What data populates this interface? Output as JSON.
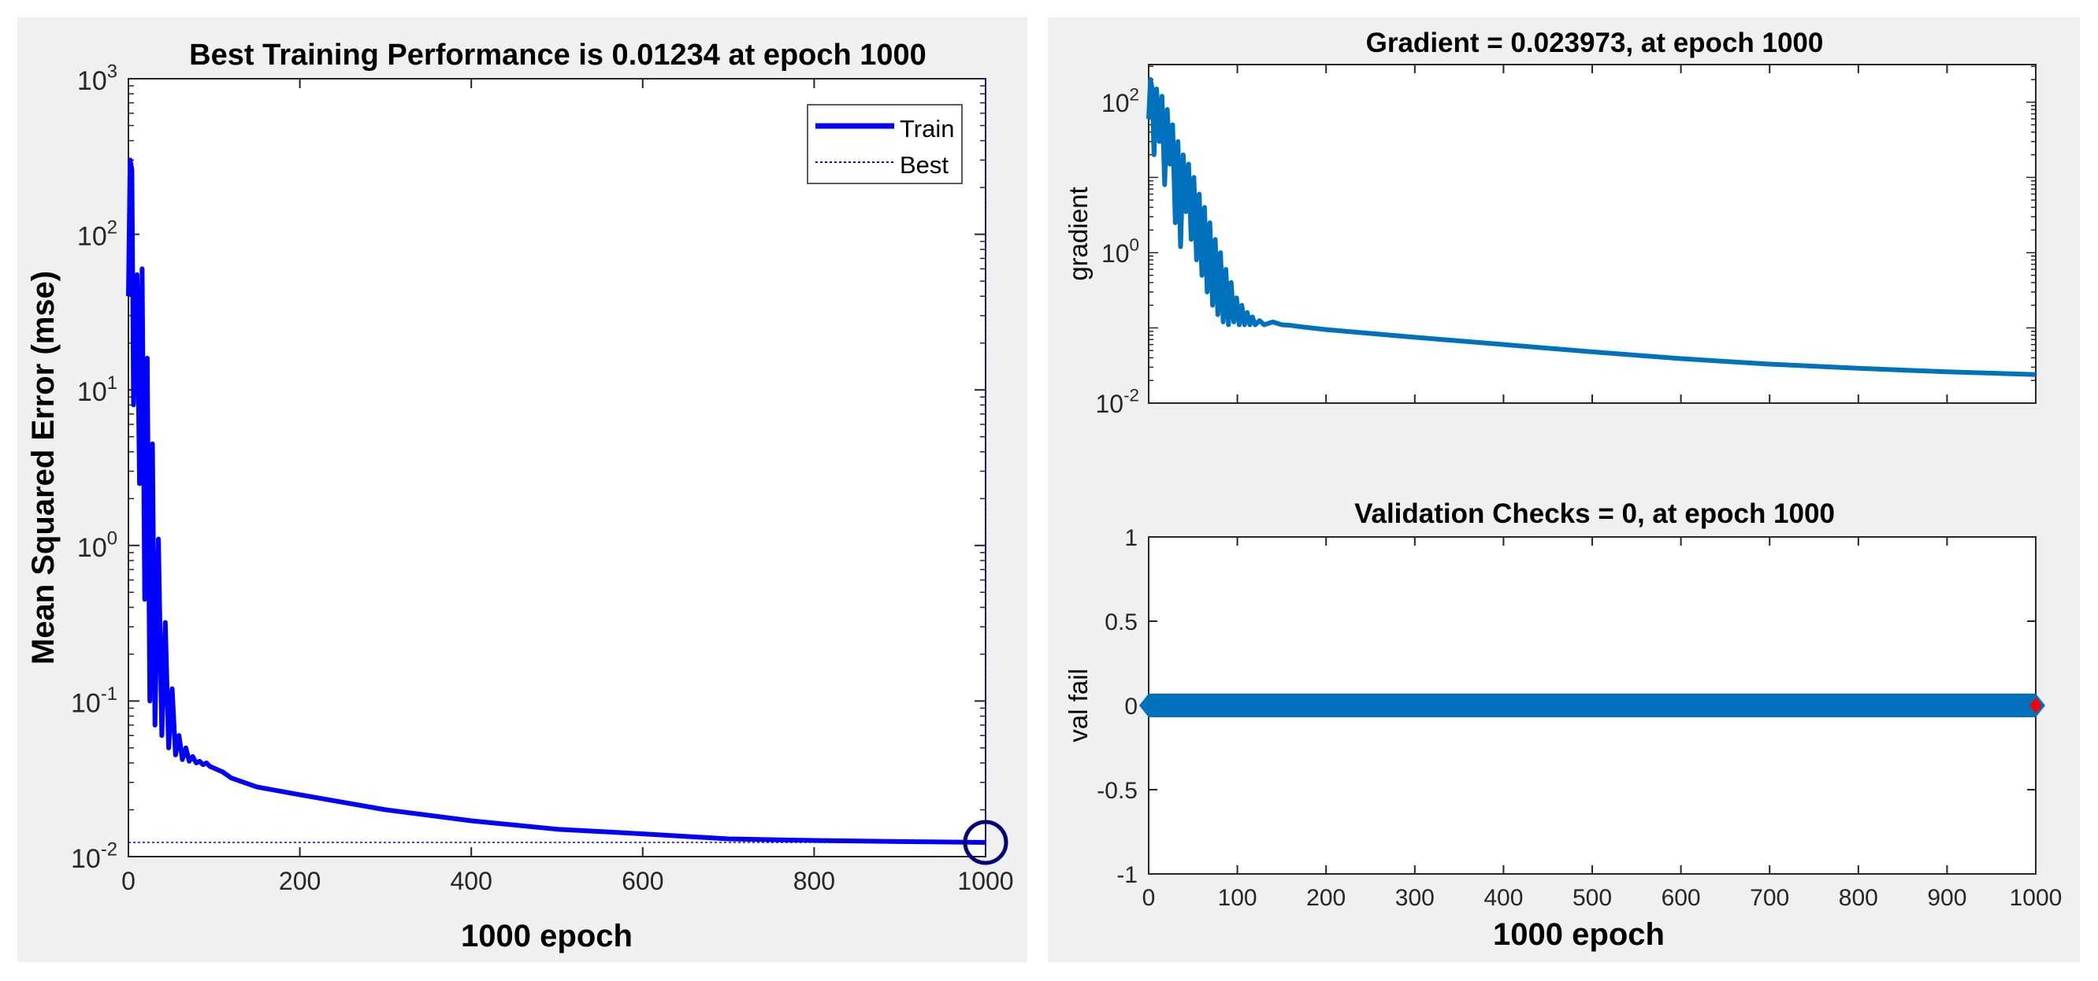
{
  "chart_data": [
    {
      "type": "line",
      "id": "performance",
      "title": "Best Training Performance is 0.01234 at epoch 1000",
      "xlabel": "1000 epoch",
      "ylabel": "Mean Squared Error  (mse)",
      "xlim": [
        0,
        1000
      ],
      "ylim_log10": [
        -2,
        3
      ],
      "yscale": "log",
      "xticks": [
        0,
        200,
        400,
        600,
        800,
        1000
      ],
      "xtick_labels": [
        "0",
        "200",
        "400",
        "600",
        "800",
        "1000"
      ],
      "yticks_exp": [
        -2,
        -1,
        0,
        1,
        2,
        3
      ],
      "ytick_base": "10",
      "ytick_exps": [
        "-2",
        "-1",
        "0",
        "1",
        "2",
        "3"
      ],
      "legend": {
        "position": "top-right",
        "entries": [
          "Train",
          "Best"
        ]
      },
      "series": [
        {
          "name": "Train",
          "color": "#0000ff",
          "x": [
            0,
            2,
            4,
            6,
            8,
            10,
            13,
            16,
            19,
            22,
            25,
            28,
            31,
            35,
            39,
            43,
            47,
            51,
            55,
            59,
            63,
            67,
            71,
            75,
            79,
            83,
            87,
            91,
            95,
            100,
            110,
            120,
            150,
            200,
            300,
            400,
            500,
            600,
            700,
            800,
            900,
            1000
          ],
          "y": [
            40,
            300,
            260,
            8,
            40,
            55,
            2.5,
            60,
            0.45,
            16,
            0.1,
            4.5,
            0.07,
            1.1,
            0.06,
            0.32,
            0.05,
            0.12,
            0.045,
            0.06,
            0.042,
            0.05,
            0.041,
            0.044,
            0.04,
            0.041,
            0.039,
            0.04,
            0.038,
            0.037,
            0.035,
            0.032,
            0.028,
            0.025,
            0.02,
            0.017,
            0.015,
            0.014,
            0.013,
            0.0127,
            0.0125,
            0.01234
          ]
        }
      ],
      "best": {
        "epoch": 1000,
        "value": 0.01234,
        "color": "#0000ff"
      },
      "marker_color": "#00007f"
    },
    {
      "type": "line",
      "id": "gradient",
      "title": "Gradient = 0.023973, at epoch 1000",
      "xlabel": "",
      "ylabel": "gradient",
      "xlim": [
        0,
        1000
      ],
      "ylim_log10": [
        -2,
        2.5
      ],
      "yscale": "log",
      "xticks": [
        0,
        100,
        200,
        300,
        400,
        500,
        600,
        700,
        800,
        900,
        1000
      ],
      "yticks_exp": [
        -2,
        0,
        2
      ],
      "ytick_base": "10",
      "ytick_exps": [
        "-2",
        "0",
        "2"
      ],
      "series": [
        {
          "name": "gradient",
          "color": "#0072bd",
          "x": [
            0,
            2,
            4,
            6,
            9,
            12,
            15,
            18,
            21,
            24,
            27,
            30,
            33,
            36,
            39,
            42,
            45,
            48,
            51,
            54,
            57,
            60,
            63,
            66,
            69,
            72,
            75,
            78,
            81,
            84,
            87,
            90,
            93,
            96,
            99,
            102,
            105,
            108,
            111,
            114,
            117,
            120,
            125,
            130,
            140,
            150,
            160,
            170,
            200,
            300,
            400,
            500,
            600,
            700,
            800,
            900,
            1000
          ],
          "y": [
            60,
            200,
            150,
            20,
            150,
            30,
            120,
            8,
            80,
            15,
            50,
            2.5,
            30,
            1.2,
            20,
            3.5,
            15,
            1.5,
            10,
            0.8,
            6,
            0.5,
            4,
            0.3,
            2.5,
            0.2,
            1.5,
            0.15,
            1.0,
            0.12,
            0.6,
            0.11,
            0.4,
            0.12,
            0.25,
            0.11,
            0.2,
            0.11,
            0.16,
            0.11,
            0.14,
            0.11,
            0.125,
            0.11,
            0.12,
            0.11,
            0.108,
            0.104,
            0.095,
            0.075,
            0.06,
            0.048,
            0.039,
            0.033,
            0.029,
            0.026,
            0.023973
          ]
        }
      ]
    },
    {
      "type": "line",
      "id": "validation",
      "title": "Validation Checks = 0, at epoch 1000",
      "xlabel": "1000 epoch",
      "ylabel": "val fail",
      "xlim": [
        0,
        1000
      ],
      "ylim": [
        -1,
        1
      ],
      "yscale": "linear",
      "xticks": [
        0,
        100,
        200,
        300,
        400,
        500,
        600,
        700,
        800,
        900,
        1000
      ],
      "xtick_labels": [
        "0",
        "100",
        "200",
        "300",
        "400",
        "500",
        "600",
        "700",
        "800",
        "900",
        "1000"
      ],
      "yticks": [
        -1,
        -0.5,
        0,
        0.5,
        1
      ],
      "ytick_labels": [
        "-1",
        "-0.5",
        "0",
        "0.5",
        "1"
      ],
      "series": [
        {
          "name": "val fail",
          "color": "#0072bd",
          "x": [
            0,
            1000
          ],
          "y": [
            0,
            0
          ]
        }
      ],
      "last_point": {
        "epoch": 1000,
        "value": 0,
        "color": "#ff0000"
      }
    }
  ]
}
